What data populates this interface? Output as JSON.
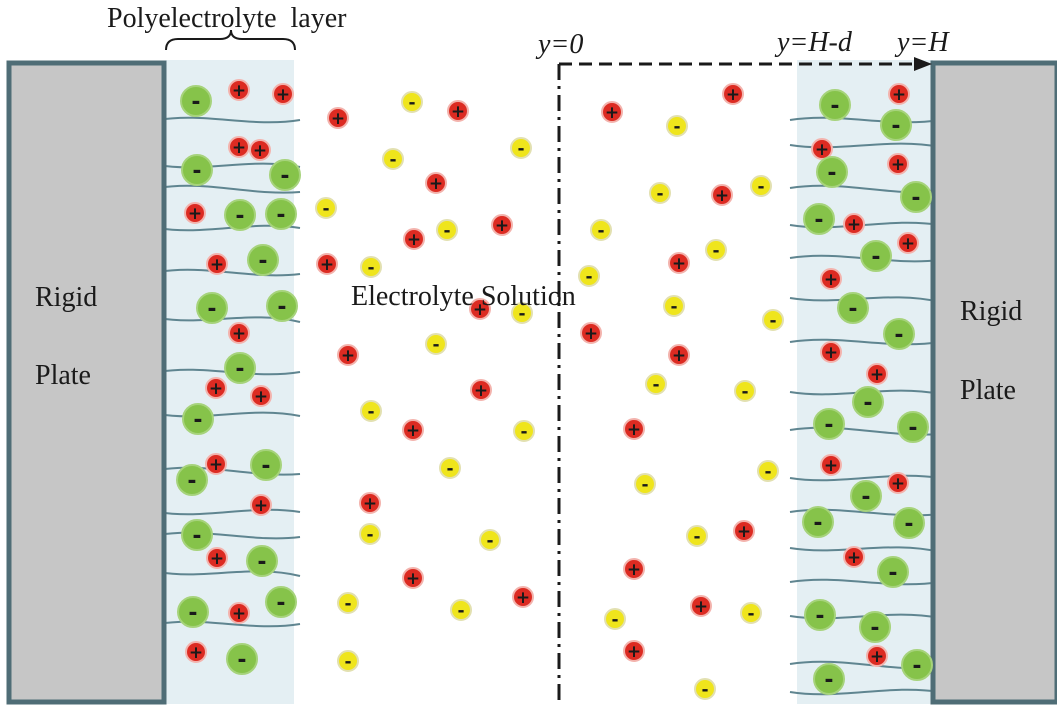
{
  "labels": {
    "polyelectrolyte_layer": "Polyelectrolyte  layer",
    "electrolyte_solution": "Electrolyte Solution",
    "plate_left_line1": "Rigid",
    "plate_left_line2": "Plate",
    "plate_right_line1": "Rigid",
    "plate_right_line2": "Plate",
    "axis_origin": "y=0",
    "axis_h_minus_d": "y=H-d",
    "axis_h": "y=H"
  },
  "ions": {
    "positive_symbol": "+",
    "negative_symbol": "-"
  },
  "colors": {
    "plate_fill": "#c6c6c6",
    "plate_border": "#4f6d76",
    "layer_fill": "#e4eff3",
    "chain": "#5f8590",
    "cation": "#dc2b22",
    "fixed_anion": "#86c34a",
    "mobile_anion": "#efe51c",
    "axis": "#1a1a1a"
  }
}
